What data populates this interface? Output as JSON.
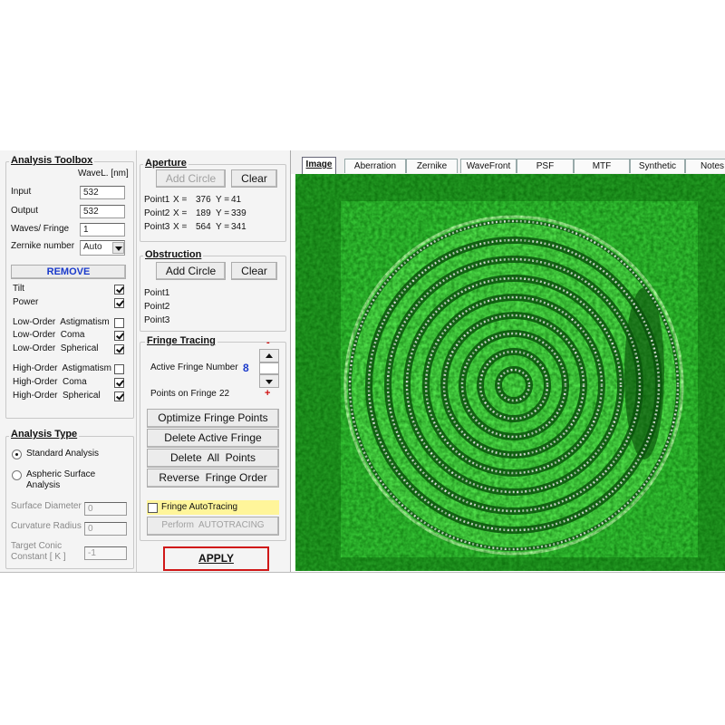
{
  "toolbox": {
    "title": "Analysis Toolbox",
    "wavel_header": "WaveL. [nm]",
    "fields": [
      {
        "label": "Input",
        "value": 532
      },
      {
        "label": "Output",
        "value": 532
      },
      {
        "label": "Waves/ Fringe",
        "value": 1
      },
      {
        "label": "Zernike number",
        "value": "Auto"
      }
    ],
    "remove": "REMOVE",
    "groups": [
      [
        {
          "label": "Tilt",
          "checked": true
        },
        {
          "label": "Power",
          "checked": true
        }
      ],
      [
        {
          "label": "Low-Order  Astigmatism",
          "checked": false
        },
        {
          "label": "Low-Order  Coma",
          "checked": true
        },
        {
          "label": "Low-Order  Spherical",
          "checked": true
        }
      ],
      [
        {
          "label": "High-Order  Astigmatism",
          "checked": false
        },
        {
          "label": "High-Order  Coma",
          "checked": true
        },
        {
          "label": "High-Order  Spherical",
          "checked": true
        }
      ]
    ]
  },
  "analysis_type": {
    "title": "Analysis Type",
    "options": [
      {
        "label": "Standard Analysis",
        "selected": true
      },
      {
        "label": "Aspheric  Surface Analysis",
        "selected": false
      }
    ],
    "fields": [
      {
        "label": "Surface Diameter",
        "value": 0
      },
      {
        "label": "Curvature Radius",
        "value": 0
      },
      {
        "label": "Target Conic Constant [ K ]",
        "value": -1
      }
    ]
  },
  "aperture": {
    "title": "Aperture",
    "buttons": [
      {
        "label": "Add Circle",
        "enabled": false
      },
      {
        "label": "Clear",
        "enabled": true
      }
    ],
    "points": [
      {
        "label": "Point1",
        "x_label": "X =",
        "x": 376,
        "y_label": "Y =",
        "y": 41
      },
      {
        "label": "Point2",
        "x_label": "X =",
        "x": 189,
        "y_label": "Y =",
        "y": 339
      },
      {
        "label": "Point3",
        "x_label": "X =",
        "x": 564,
        "y_label": "Y =",
        "y": 341
      }
    ]
  },
  "obstruction": {
    "title": "Obstruction",
    "buttons": [
      {
        "label": "Add Circle",
        "enabled": true
      },
      {
        "label": "Clear",
        "enabled": true
      }
    ],
    "points": [
      "Point1",
      "Point2",
      "Point3"
    ]
  },
  "fringe_tracing": {
    "title": "Fringe Tracing",
    "active_label": "Active Fringe Number",
    "active_value": 8,
    "points_label": "Points on Fringe",
    "points_value": 22,
    "minus": "-",
    "plus": "+",
    "buttons": [
      "Optimize Fringe Points",
      "Delete Active Fringe",
      "Delete  All  Points",
      "Reverse  Fringe Order"
    ],
    "autotracing": {
      "label": "Fringe AutoTracing",
      "checked": false
    },
    "perform": {
      "label": "Perform  AUTOTRACING",
      "enabled": false
    }
  },
  "apply": "APPLY",
  "tabs": {
    "items": [
      "Image",
      "Aberration",
      "Zernike",
      "WaveFront",
      "PSF",
      "MTF",
      "Synthetic",
      "Notes"
    ],
    "active": 0
  }
}
